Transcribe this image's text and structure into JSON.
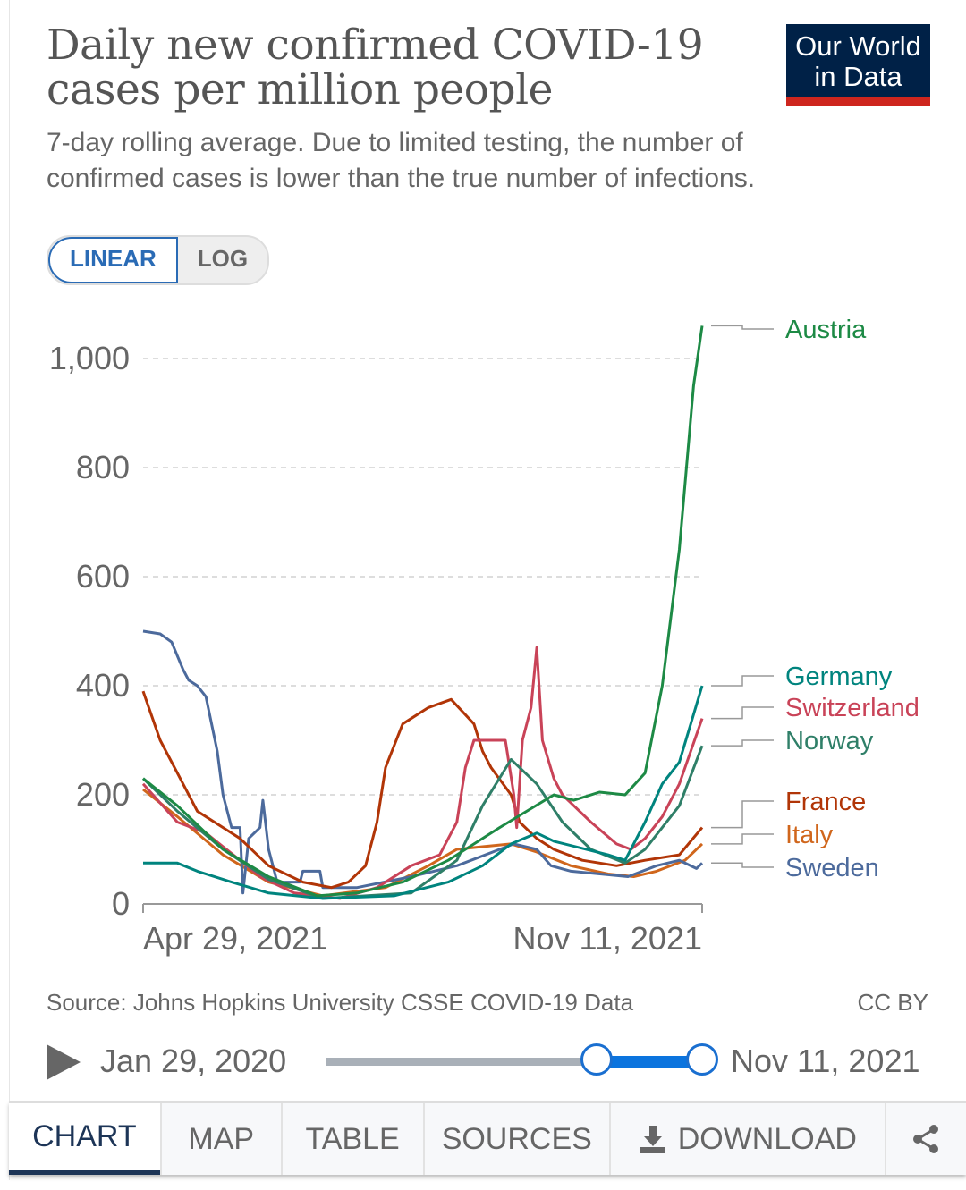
{
  "header": {
    "title": "Daily new confirmed COVID-19 cases per million people",
    "subtitle": "7-day rolling average. Due to limited testing, the number of confirmed cases is lower than the true number of infections.",
    "logo_line1": "Our World",
    "logo_line2": "in Data"
  },
  "scale_toggle": {
    "linear": "LINEAR",
    "log": "LOG",
    "selected": "LINEAR"
  },
  "chart_data": {
    "type": "line",
    "title": "Daily new confirmed COVID-19 cases per million people",
    "x_unit": "days since Apr 29, 2021",
    "xlim": [
      0,
      196
    ],
    "x_tick_labels": [
      "Apr 29, 2021",
      "Nov 11, 2021"
    ],
    "ylim": [
      0,
      1000
    ],
    "y_ticks": [
      0,
      200,
      400,
      600,
      800,
      1000
    ],
    "y_tick_labels": [
      "0",
      "200",
      "400",
      "600",
      "800",
      "1,000"
    ],
    "grid": true,
    "legend": "right (line-end labels)",
    "series": [
      {
        "name": "Austria",
        "color": "#1d8a45",
        "x": [
          0,
          12,
          28,
          44,
          61,
          75,
          91,
          107,
          125,
          144,
          151,
          160,
          169,
          176,
          182,
          188,
          193,
          196
        ],
        "y": [
          230,
          180,
          100,
          50,
          15,
          20,
          40,
          80,
          140,
          200,
          190,
          205,
          200,
          240,
          400,
          650,
          950,
          1060
        ]
      },
      {
        "name": "Germany",
        "color": "#00847e",
        "x": [
          0,
          12,
          19,
          31,
          44,
          63,
          88,
          107,
          119,
          129,
          138,
          144,
          163,
          169,
          176,
          182,
          188,
          196
        ],
        "y": [
          75,
          75,
          60,
          40,
          20,
          10,
          15,
          40,
          70,
          110,
          130,
          115,
          90,
          80,
          150,
          220,
          260,
          400
        ]
      },
      {
        "name": "Switzerland",
        "color": "#c94358",
        "x": [
          0,
          12,
          22,
          34,
          41,
          53,
          69,
          82,
          94,
          104,
          110,
          113,
          116,
          127,
          130,
          131,
          133,
          136,
          138,
          140,
          144,
          147,
          157,
          166,
          171,
          176,
          182,
          188,
          196
        ],
        "y": [
          220,
          150,
          130,
          80,
          50,
          20,
          10,
          30,
          70,
          90,
          150,
          250,
          300,
          300,
          200,
          140,
          300,
          360,
          470,
          300,
          230,
          200,
          150,
          110,
          100,
          120,
          160,
          220,
          340
        ]
      },
      {
        "name": "Norway",
        "color": "#2f7f68",
        "x": [
          0,
          12,
          28,
          44,
          63,
          94,
          110,
          119,
          129,
          138,
          147,
          157,
          169,
          176,
          188,
          196
        ],
        "y": [
          230,
          170,
          100,
          45,
          10,
          20,
          80,
          180,
          265,
          220,
          150,
          100,
          75,
          100,
          180,
          290
        ]
      },
      {
        "name": "France",
        "color": "#b13507",
        "x": [
          0,
          6,
          12,
          19,
          28,
          34,
          44,
          56,
          66,
          72,
          78,
          82,
          85,
          91,
          100,
          108,
          116,
          119,
          122,
          129,
          132,
          138,
          144,
          154,
          166,
          176,
          188,
          196
        ],
        "y": [
          390,
          300,
          240,
          170,
          140,
          120,
          70,
          40,
          30,
          40,
          70,
          150,
          250,
          330,
          360,
          375,
          330,
          280,
          250,
          200,
          150,
          120,
          100,
          80,
          70,
          80,
          90,
          140
        ]
      },
      {
        "name": "Italy",
        "color": "#d0661c",
        "x": [
          0,
          12,
          28,
          44,
          63,
          85,
          100,
          110,
          119,
          129,
          138,
          150,
          163,
          172,
          180,
          190,
          196
        ],
        "y": [
          210,
          160,
          90,
          40,
          15,
          30,
          70,
          100,
          105,
          110,
          95,
          70,
          55,
          50,
          60,
          80,
          110
        ]
      },
      {
        "name": "Sweden",
        "color": "#4c6a9c",
        "x": [
          0,
          6,
          10,
          14,
          16,
          19,
          22,
          26,
          28,
          31,
          34,
          35,
          37,
          41,
          42,
          44,
          47,
          55,
          56,
          62,
          63,
          75,
          94,
          110,
          125,
          130,
          138,
          143,
          150,
          170,
          180,
          188,
          194,
          196
        ],
        "y": [
          500,
          495,
          480,
          430,
          410,
          400,
          380,
          280,
          200,
          140,
          140,
          20,
          120,
          140,
          190,
          100,
          40,
          40,
          60,
          60,
          30,
          30,
          50,
          70,
          100,
          110,
          100,
          70,
          60,
          50,
          70,
          80,
          65,
          75
        ]
      }
    ]
  },
  "footer": {
    "source": "Source: Johns Hopkins University CSSE COVID-19 Data",
    "license": "CC BY"
  },
  "timeline": {
    "start_label": "Jan 29, 2020",
    "end_label": "Nov 11, 2021",
    "selection_start_fraction": 0.72,
    "selection_end_fraction": 1.0
  },
  "tabs": [
    {
      "label": "CHART",
      "active": true
    },
    {
      "label": "MAP"
    },
    {
      "label": "TABLE"
    },
    {
      "label": "SOURCES"
    },
    {
      "label": "DOWNLOAD"
    }
  ],
  "share_icon": "share-icon",
  "download_icon": "download-icon"
}
